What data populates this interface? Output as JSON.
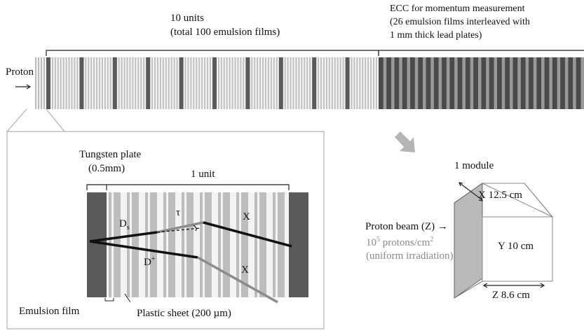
{
  "labels": {
    "units_title": "10 units",
    "units_subtitle": "(total 100 emulsion films)",
    "ecc_line1": "ECC for momentum measurement",
    "ecc_line2": "(26 emulsion films interleaved with",
    "ecc_line3": "1 mm thick lead plates)",
    "proton": "Proton",
    "tungsten_line1": "Tungsten plate",
    "tungsten_line2": "(0.5mm)",
    "one_unit": "1 unit",
    "ds_base": "D",
    "ds_sub": "s",
    "tau": "τ",
    "x_upper": "X",
    "dplus_base": "D",
    "dplus_sup": "+",
    "x_lower": "X",
    "emulsion_film": "Emulsion film",
    "plastic_sheet": "Plastic sheet (200 µm)",
    "one_module": "1 module",
    "dim_x": "X 12.5 cm",
    "dim_y": "Y 10 cm",
    "dim_z": "Z 8.6 cm",
    "proton_beam": "Proton beam (Z) →",
    "protons_base": "10",
    "protons_exp": "5",
    "protons_unit": " protons/cm",
    "protons_unit_exp": "2",
    "irradiation": "(uniform irradiation)"
  },
  "structure": {
    "unit_count": 10,
    "films_total": 100,
    "ecc_films": 26
  },
  "colors": {
    "tungsten": "#5a5a5a",
    "lead": "#4a4a4a",
    "film": "#bdbdbd",
    "plastic": "#f3f3f3",
    "track_dark": "#111111",
    "track_gray": "#8c8c8c",
    "arrow_gray": "#b5b5b5",
    "module_face": "#b9b9b9"
  }
}
